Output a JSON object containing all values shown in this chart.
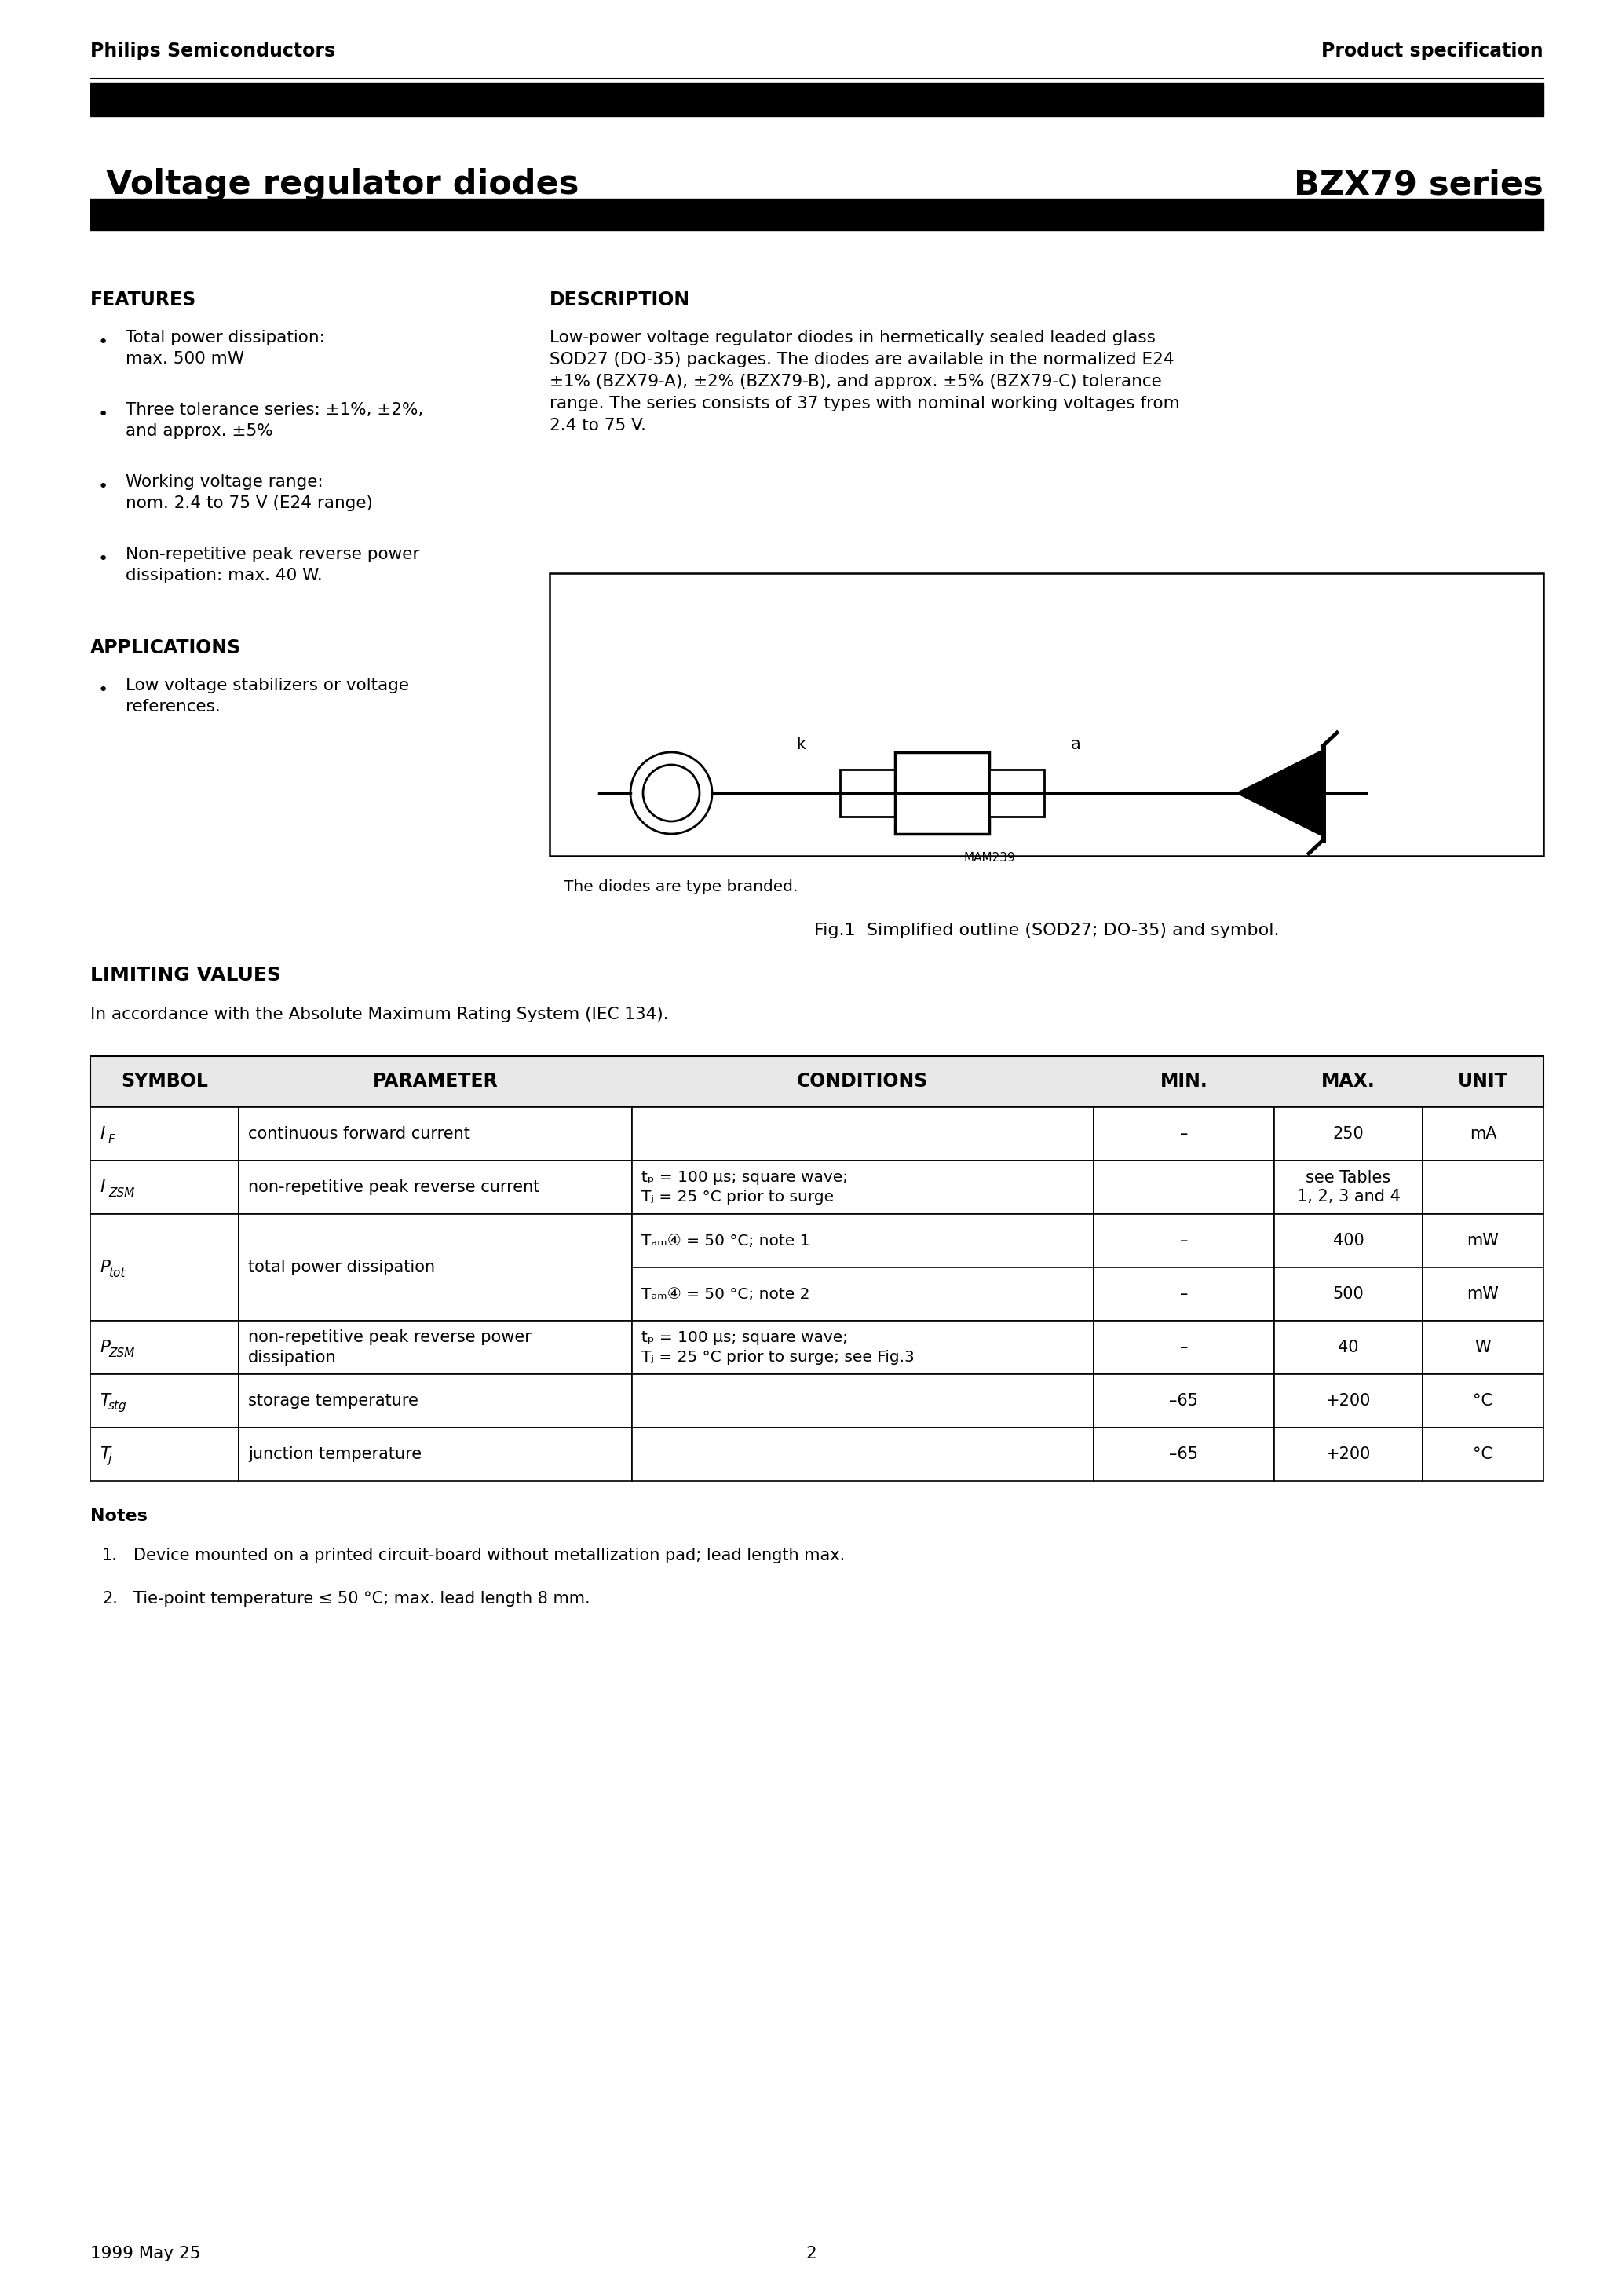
{
  "page_title_left": "Voltage regulator diodes",
  "page_title_right": "BZX79 series",
  "header_left": "Philips Semiconductors",
  "header_right": "Product specification",
  "features_title": "FEATURES",
  "features_items": [
    "Total power dissipation:\nmax. 500 mW",
    "Three tolerance series: ±1%, ±2%,\nand approx. ±5%",
    "Working voltage range:\nnom. 2.4 to 75 V (E24 range)",
    "Non-repetitive peak reverse power\ndissipation: max. 40 W."
  ],
  "applications_title": "APPLICATIONS",
  "applications_items": [
    "Low voltage stabilizers or voltage\nreferences."
  ],
  "description_title": "DESCRIPTION",
  "description_text": "Low-power voltage regulator diodes in hermetically sealed leaded glass\nSOD27 (DO-35) packages. The diodes are available in the normalized E24\n±1% (BZX79-A), ±2% (BZX79-B), and approx. ±5% (BZX79-C) tolerance\nrange. The series consists of 37 types with nominal working voltages from\n2.4 to 75 V.",
  "fig_caption1": "The diodes are type branded.",
  "fig_caption2": "Fig.1  Simplified outline (SOD27; DO-35) and symbol.",
  "limiting_values_title": "LIMITING VALUES",
  "limiting_values_subtitle": "In accordance with the Absolute Maximum Rating System (IEC 134).",
  "table_headers": [
    "SYMBOL",
    "PARAMETER",
    "CONDITIONS",
    "MIN.",
    "MAX.",
    "UNIT"
  ],
  "table_rows_display": [
    {
      "sym": "I",
      "sub": "F",
      "param": "continuous forward current",
      "cond": [
        ""
      ],
      "min": [
        "–"
      ],
      "max": [
        "250"
      ],
      "unit": [
        "mA"
      ],
      "nrows": 1
    },
    {
      "sym": "I",
      "sub": "ZSM",
      "param": "non-repetitive peak reverse current",
      "cond": [
        "tₚ = 100 μs; square wave;\nTⱼ = 25 °C prior to surge"
      ],
      "min": [
        ""
      ],
      "max": [
        "see Tables\n1, 2, 3 and 4"
      ],
      "unit": [
        ""
      ],
      "nrows": 1
    },
    {
      "sym": "P",
      "sub": "tot",
      "param": "total power dissipation",
      "cond": [
        "Tₐₘ④ = 50 °C; note 1",
        "Tₐₘ④ = 50 °C; note 2"
      ],
      "min": [
        "–",
        "–"
      ],
      "max": [
        "400",
        "500"
      ],
      "unit": [
        "mW",
        "mW"
      ],
      "nrows": 2
    },
    {
      "sym": "P",
      "sub": "ZSM",
      "param": "non-repetitive peak reverse power\ndissipation",
      "cond": [
        "tₚ = 100 μs; square wave;\nTⱼ = 25 °C prior to surge; see Fig.3"
      ],
      "min": [
        "–"
      ],
      "max": [
        "40"
      ],
      "unit": [
        "W"
      ],
      "nrows": 1
    },
    {
      "sym": "T",
      "sub": "stg",
      "param": "storage temperature",
      "cond": [
        ""
      ],
      "min": [
        "–65"
      ],
      "max": [
        "+200"
      ],
      "unit": [
        "°C"
      ],
      "nrows": 1
    },
    {
      "sym": "T",
      "sub": "j",
      "param": "junction temperature",
      "cond": [
        ""
      ],
      "min": [
        "–65"
      ],
      "max": [
        "+200"
      ],
      "unit": [
        "°C"
      ],
      "nrows": 1
    }
  ],
  "notes_title": "Notes",
  "notes": [
    "Device mounted on a printed circuit-board without metallization pad; lead length max.",
    "Tie-point temperature ≤ 50 °C; max. lead length 8 mm."
  ],
  "footer_left": "1999 May 25",
  "footer_center": "2",
  "bg_color": "#ffffff",
  "text_color": "#000000"
}
